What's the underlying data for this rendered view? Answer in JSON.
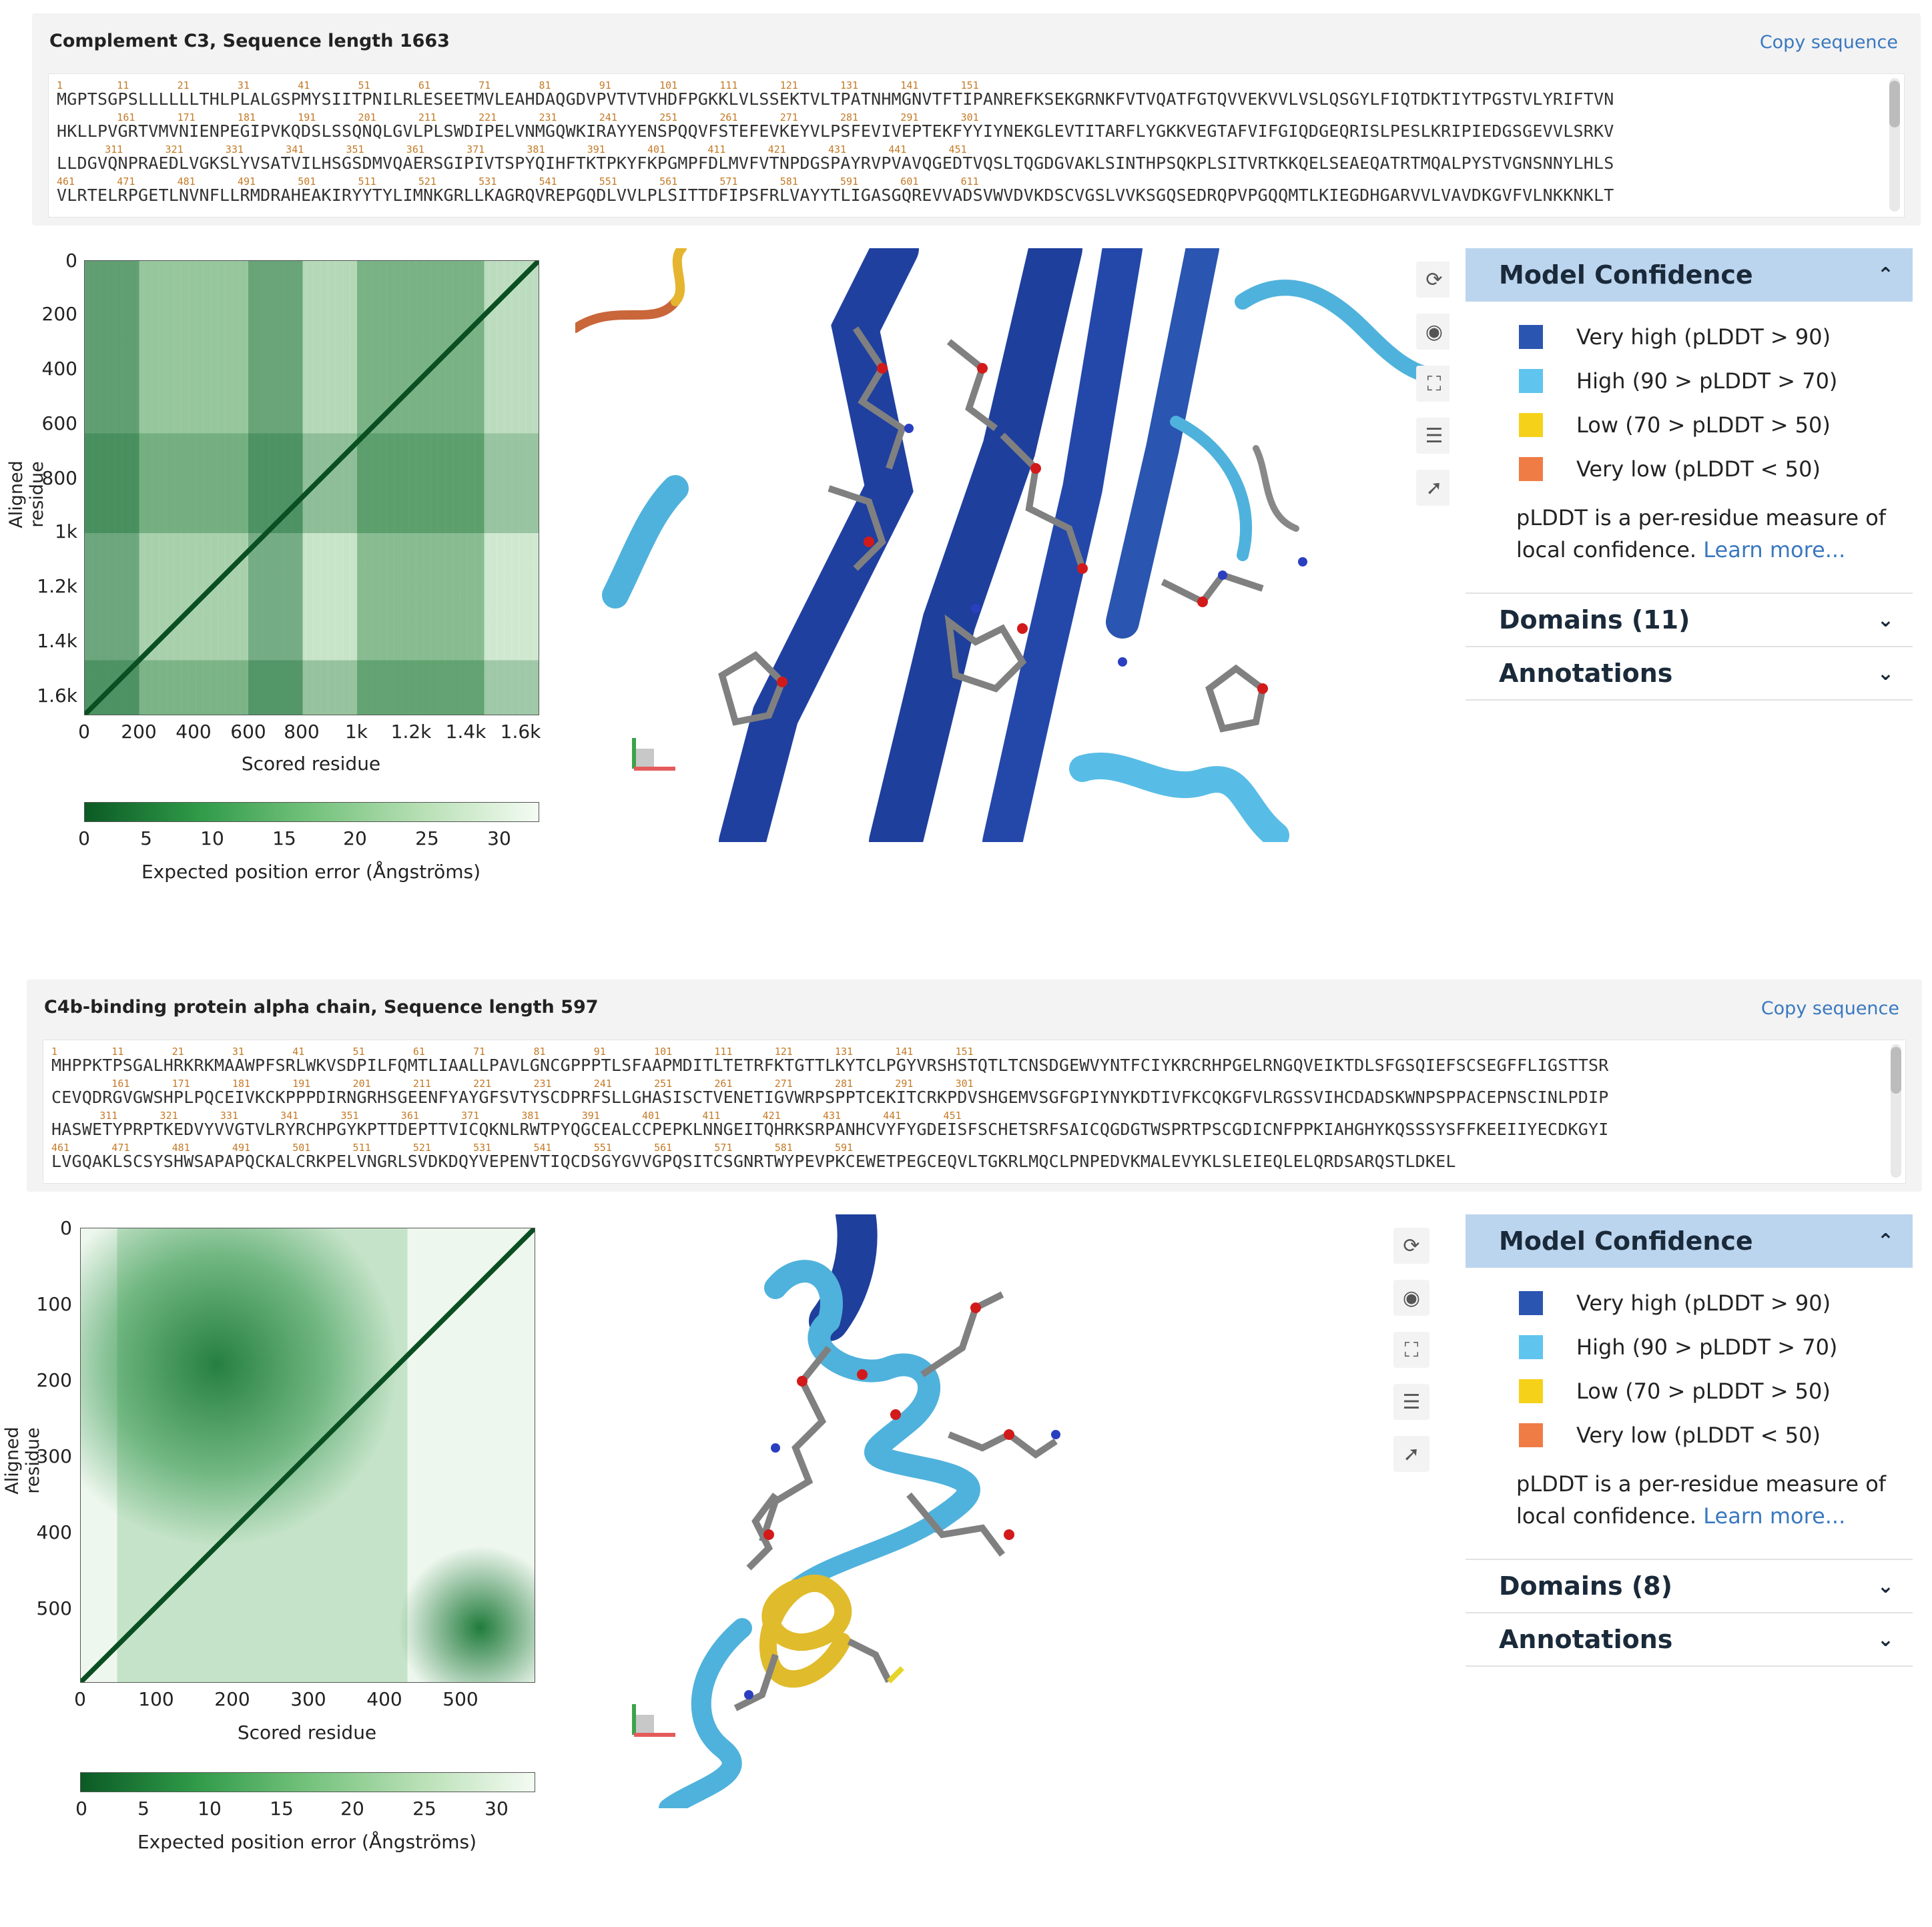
{
  "panels": [
    {
      "title": "Complement C3, Sequence length 1663",
      "copy_label": "Copy sequence",
      "seq_lines": [
        {
          "nums": "1         11        21        31        41        51        61        71        81        91        101       111       121       131       141       151",
          "text": "MGPTSGPSLLLLLLTHLPLALGSPMYSIITPNILRLESEETMVLEAHDAQGDVPVTVTVHDFPGKKLVLSSEKTVLTPATNHMGNVTFTIPANREFKSEKGRNKFVTVQATFGTQVVEKVVLVSLQSGYLFIQTDKTIYTPGSTVLYRIFTVN"
        },
        {
          "nums": "          161       171       181       191       201       211       221       231       241       251       261       271       281       291       301",
          "text": "HKLLPVGRTVMVNIENPEGIPVKQDSLSSQNQLGVLPLSWDIPELVNMGQWKIRAYYENSPQQVFSTEFEVKEYVLPSFEVIVEPTEKFYYIYNEKGLEVTITARFLYGKKVEGTAFVIFGIQDGEQRISLPESLKRIPIEDGSGEVVLSRKV"
        },
        {
          "nums": "        311       321       331       341       351       361       371       381       391       401       411       421       431       441       451",
          "text": "LLDGVQNPRAEDLVGKSLYVSATVILHSGSDMVQAERSGIPIVTSPYQIHFTKTPKYFKPGMPFDLMVFVTNPDGSPAYRVPVAVQGEDTVQSLTQGDGVAKLSINTHPSQKPLSITVRTKKQELSEAEQATRTMQALPYSTVGNSNNYLHLS"
        },
        {
          "nums": "461       471       481       491       501       511       521       531       541       551       561       571       581       591       601       611",
          "text": "VLRTELRPGETLNVNFLLRMDRAHEAKIRYYTYLIMNKGRLLKAGRQVREPGQDLVVLPLSITTDFIPSFRLVAYYTLIGASGQREVVADSVWVDVKDSCVGSLVVKSGQSEDRQPVPGQQMTLKIEGDHGARVVLVAVDKGVFVLNKKNKLT"
        }
      ],
      "heatmap": {
        "y_ticks": [
          "0",
          "200",
          "400",
          "600",
          "800",
          "1k",
          "1.2k",
          "1.4k",
          "1.6k"
        ],
        "x_ticks": [
          "0",
          "200",
          "400",
          "600",
          "800",
          "1k",
          "1.2k",
          "1.4k",
          "1.6k"
        ],
        "ylabel": "Aligned residue",
        "xlabel": "Scored residue",
        "colorbar_ticks": [
          "0",
          "5",
          "10",
          "15",
          "20",
          "25",
          "30"
        ],
        "colorbar_label": "Expected position error (Ångströms)"
      },
      "confidence": {
        "header": "Model Confidence",
        "legend": [
          {
            "label": "Very high (pLDDT > 90)",
            "color": "#2a55b0"
          },
          {
            "label": "High (90 > pLDDT > 70)",
            "color": "#5fc4ee"
          },
          {
            "label": "Low (70 > pLDDT > 50)",
            "color": "#f5d11a"
          },
          {
            "label": "Very low (pLDDT < 50)",
            "color": "#f07c45"
          }
        ],
        "info": "pLDDT is a per-residue measure of local confidence.",
        "learn_more": "Learn more...",
        "domains": "Domains (11)",
        "annotations": "Annotations"
      }
    },
    {
      "title": "C4b-binding protein alpha chain, Sequence length 597",
      "copy_label": "Copy sequence",
      "seq_lines": [
        {
          "nums": "1         11        21        31        41        51        61        71        81        91        101       111       121       131       141       151",
          "text": "MHPPKTPSGALHRKRKMAAWPFSRLWKVSDPILFQMTLIAALLPAVLGNCGPPPTLSFAAPMDITLTETRFKTGTTLKYTCLPGYVRSHSTQTLTCNSDGEWVYNTFCIYKRCRHPGELRNGQVEIKTDLSFGSQIEFSCSEGFFLIGSTTSR"
        },
        {
          "nums": "          161       171       181       191       201       211       221       231       241       251       261       271       281       291       301",
          "text": "CEVQDRGVGWSHPLPQCEIVKCKPPPDIRNGRHSGEENFYAYGFSVTYSCDPRFSLLGHASISCTVENETIGVWRPSPPTCEKITCRKPDVSHGEMVSGFGPIYNYKDTIVFKCQKGFVLRGSSVIHCDADSKWNPSPPACEPNSCINLPDIP"
        },
        {
          "nums": "        311       321       331       341       351       361       371       381       391       401       411       421       431       441       451",
          "text": "HASWETYPRPTKEDVYVVGTVLRYRCHPGYKPTTDEPTTVICQKNLRWTPYQGCEALCCPEPKLNNGEITQHRKSRPANHCVYFYGDEISFSCHETSRFSAICQGDGTWSPRTPSCGDICNFPPKIAHGHYKQSSSYSFFKEEIIYECDKGYI"
        },
        {
          "nums": "461       471       481       491       501       511       521       531       541       551       561       571       581       591",
          "text": "LVGQAKLSCSYSHWSAPAPQCKALCRKPELVNGRLSVDKDQYVEPENVTIQCDSGYGVVGPQSITCSGNRTWYPEVPKCEWETPEGCEQVLTGKRLMQCLPNPEDVKMALEVYKLSLEIEQLELQRDSARQSTLDKEL"
        }
      ],
      "heatmap": {
        "y_ticks": [
          "0",
          "100",
          "200",
          "300",
          "400",
          "500"
        ],
        "x_ticks": [
          "0",
          "100",
          "200",
          "300",
          "400",
          "500"
        ],
        "ylabel": "Aligned residue",
        "xlabel": "Scored residue",
        "colorbar_ticks": [
          "0",
          "5",
          "10",
          "15",
          "20",
          "25",
          "30"
        ],
        "colorbar_label": "Expected position error (Ångströms)"
      },
      "confidence": {
        "header": "Model Confidence",
        "legend": [
          {
            "label": "Very high (pLDDT > 90)",
            "color": "#2a55b0"
          },
          {
            "label": "High (90 > pLDDT > 70)",
            "color": "#5fc4ee"
          },
          {
            "label": "Low (70 > pLDDT > 50)",
            "color": "#f5d11a"
          },
          {
            "label": "Very low (pLDDT < 50)",
            "color": "#f07c45"
          }
        ],
        "info": "pLDDT is a per-residue measure of local confidence.",
        "learn_more": "Learn more...",
        "domains": "Domains (8)",
        "annotations": "Annotations"
      }
    }
  ],
  "icons": {
    "rotate": "rotate-icon",
    "camera": "camera-icon",
    "expand": "expand-icon",
    "settings": "settings-icon",
    "select": "pointer-icon",
    "chevron_up": "chevron-up-icon",
    "chevron_down": "chevron-down-icon"
  }
}
